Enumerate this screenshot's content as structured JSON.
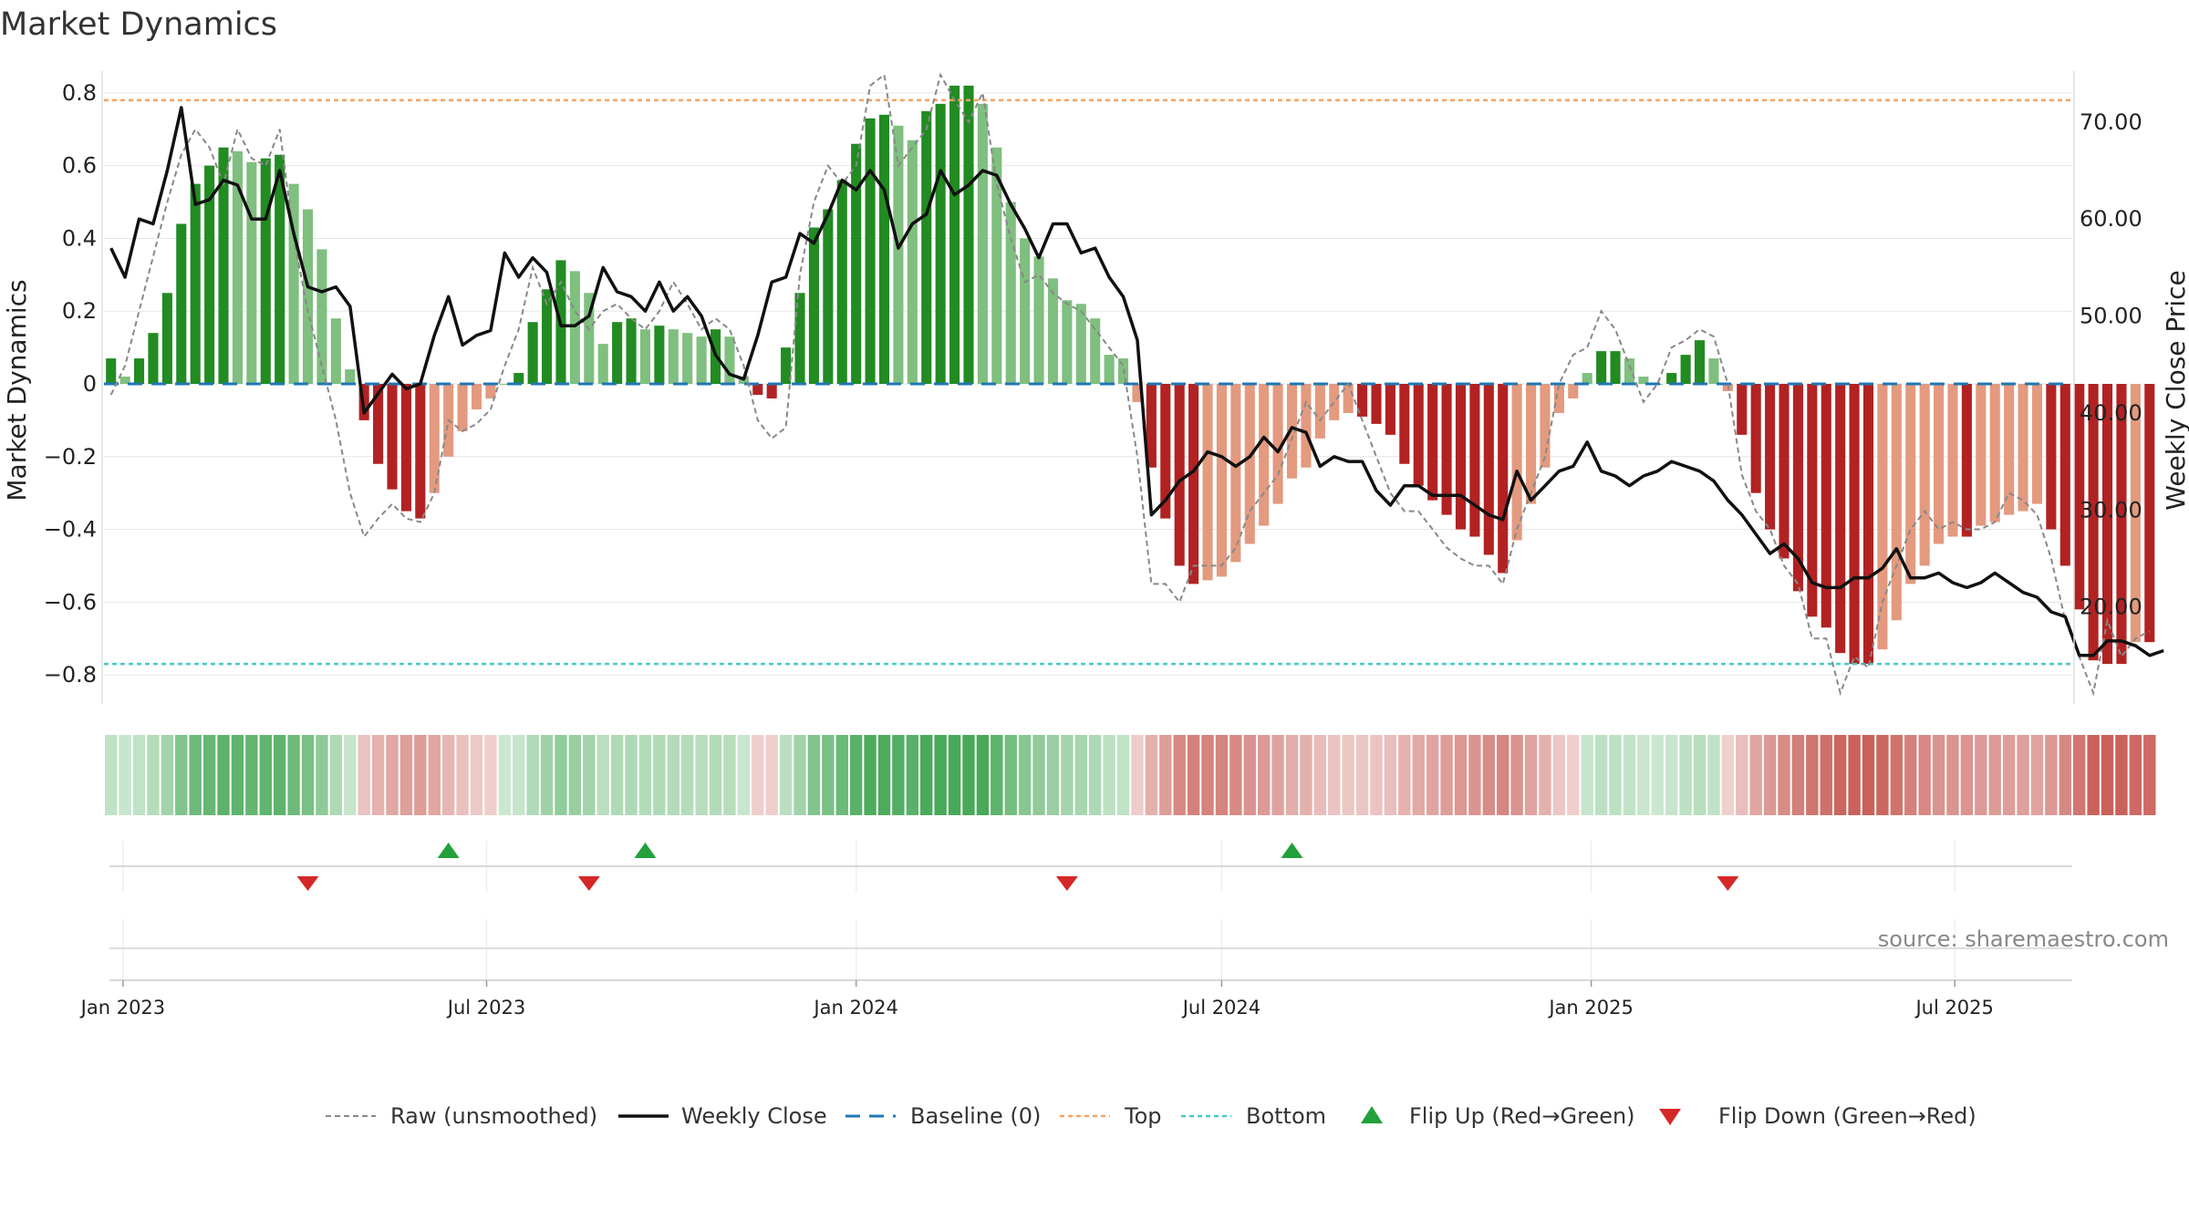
{
  "chart_data": {
    "type": "bar",
    "title": "Market Dynamics",
    "ylabel_left": "Market Dynamics",
    "ylabel_right": "Weekly Close Price",
    "ylim_left": [
      -0.88,
      0.88
    ],
    "ylim_right": [
      10,
      76
    ],
    "y_ticks_left": [
      0.8,
      0.6,
      0.4,
      0.2,
      0,
      -0.2,
      -0.4,
      -0.6,
      -0.8
    ],
    "y_tick_labels_left": [
      "0.8",
      "0.6",
      "0.4",
      "0.2",
      "0",
      "−0.2",
      "−0.4",
      "−0.6",
      "−0.8"
    ],
    "y_ticks_right": [
      70,
      60,
      50,
      40,
      30,
      20
    ],
    "y_tick_labels_right": [
      "70.00",
      "60.00",
      "50.00",
      "40.00",
      "30.00",
      "20.00"
    ],
    "start_date": "2022-12-26",
    "weeks": 140,
    "x_tick_labels": [
      "Jan 2023",
      "Jul 2023",
      "Jan 2024",
      "Jul 2024",
      "Jan 2025",
      "Jul 2025"
    ],
    "x_tick_dates": [
      "2023-01-01",
      "2023-07-01",
      "2024-01-01",
      "2024-07-01",
      "2025-01-01",
      "2025-07-01"
    ],
    "top_level": 0.78,
    "bottom_level": -0.77,
    "baseline_level": 0,
    "dynamics": [
      0.07,
      0.02,
      0.07,
      0.14,
      0.25,
      0.44,
      0.55,
      0.6,
      0.65,
      0.64,
      0.61,
      0.62,
      0.63,
      0.55,
      0.48,
      0.37,
      0.18,
      0.04,
      -0.1,
      -0.22,
      -0.29,
      -0.35,
      -0.37,
      -0.3,
      -0.2,
      -0.13,
      -0.07,
      -0.04,
      0.0,
      0.03,
      0.17,
      0.26,
      0.34,
      0.31,
      0.25,
      0.11,
      0.17,
      0.18,
      0.15,
      0.16,
      0.15,
      0.14,
      0.13,
      0.15,
      0.13,
      0.02,
      -0.03,
      -0.04,
      0.1,
      0.25,
      0.43,
      0.48,
      0.56,
      0.66,
      0.73,
      0.74,
      0.71,
      0.67,
      0.75,
      0.77,
      0.82,
      0.82,
      0.77,
      0.65,
      0.5,
      0.4,
      0.35,
      0.29,
      0.23,
      0.22,
      0.18,
      0.08,
      0.07,
      -0.05,
      -0.23,
      -0.37,
      -0.5,
      -0.55,
      -0.54,
      -0.53,
      -0.49,
      -0.44,
      -0.39,
      -0.33,
      -0.26,
      -0.23,
      -0.15,
      -0.1,
      -0.08,
      -0.09,
      -0.11,
      -0.14,
      -0.22,
      -0.28,
      -0.32,
      -0.36,
      -0.4,
      -0.42,
      -0.47,
      -0.52,
      -0.43,
      -0.33,
      -0.23,
      -0.08,
      -0.04,
      0.03,
      0.09,
      0.09,
      0.07,
      0.02,
      0.0,
      0.03,
      0.08,
      0.12,
      0.07,
      -0.02,
      -0.14,
      -0.3,
      -0.4,
      -0.48,
      -0.57,
      -0.64,
      -0.67,
      -0.74,
      -0.77,
      -0.77,
      -0.73,
      -0.65,
      -0.55,
      -0.5,
      -0.44,
      -0.42,
      -0.42,
      -0.39,
      -0.38,
      -0.36,
      -0.35,
      -0.33,
      -0.4,
      -0.5,
      -0.62,
      -0.76,
      -0.77,
      -0.77,
      -0.71,
      -0.71
    ],
    "raw_unsmoothed": [
      -0.03,
      0.05,
      0.2,
      0.35,
      0.5,
      0.63,
      0.7,
      0.65,
      0.55,
      0.7,
      0.62,
      0.6,
      0.7,
      0.4,
      0.2,
      0.05,
      -0.1,
      -0.3,
      -0.42,
      -0.37,
      -0.33,
      -0.37,
      -0.38,
      -0.3,
      -0.1,
      -0.13,
      -0.11,
      -0.07,
      0.05,
      0.15,
      0.32,
      0.22,
      0.28,
      0.2,
      0.15,
      0.2,
      0.22,
      0.18,
      0.15,
      0.2,
      0.28,
      0.22,
      0.15,
      0.18,
      0.15,
      0.05,
      -0.1,
      -0.15,
      -0.12,
      0.3,
      0.5,
      0.6,
      0.55,
      0.6,
      0.82,
      0.85,
      0.6,
      0.65,
      0.7,
      0.85,
      0.78,
      0.72,
      0.8,
      0.55,
      0.4,
      0.28,
      0.3,
      0.25,
      0.22,
      0.2,
      0.15,
      0.1,
      0.05,
      -0.2,
      -0.55,
      -0.55,
      -0.6,
      -0.5,
      -0.5,
      -0.5,
      -0.45,
      -0.35,
      -0.3,
      -0.25,
      -0.15,
      -0.05,
      -0.1,
      -0.05,
      0.0,
      -0.1,
      -0.2,
      -0.3,
      -0.35,
      -0.35,
      -0.4,
      -0.45,
      -0.48,
      -0.5,
      -0.5,
      -0.55,
      -0.4,
      -0.3,
      -0.2,
      0.0,
      0.08,
      0.1,
      0.2,
      0.15,
      0.05,
      -0.05,
      0.0,
      0.1,
      0.12,
      0.15,
      0.13,
      0.0,
      -0.25,
      -0.35,
      -0.4,
      -0.5,
      -0.55,
      -0.7,
      -0.7,
      -0.85,
      -0.75,
      -0.78,
      -0.6,
      -0.5,
      -0.4,
      -0.35,
      -0.4,
      -0.38,
      -0.4,
      -0.4,
      -0.38,
      -0.3,
      -0.32,
      -0.36,
      -0.48,
      -0.65,
      -0.75,
      -0.85,
      -0.65,
      -0.75,
      -0.7,
      -0.68
    ],
    "weekly_close": [
      57,
      54,
      60,
      59.5,
      65,
      71.5,
      61.5,
      62,
      64,
      63.5,
      60,
      60,
      65,
      58.5,
      53,
      52.5,
      53,
      51,
      40,
      42,
      44,
      42.5,
      43,
      48,
      52,
      47,
      48,
      48.5,
      56.5,
      54,
      56,
      54.5,
      49,
      49,
      50,
      55,
      52.5,
      52,
      50.5,
      53.5,
      50.5,
      52,
      50,
      46,
      44,
      43.5,
      48,
      53.5,
      54,
      58.5,
      57.5,
      60.5,
      64,
      63,
      65,
      63,
      57,
      59.5,
      60.5,
      65,
      62.5,
      63.5,
      65,
      64.5,
      61.5,
      59,
      56,
      59.5,
      59.5,
      56.5,
      57,
      54,
      52,
      47.5,
      29.5,
      31,
      33,
      34,
      36,
      35.5,
      34.5,
      35.5,
      37.5,
      36,
      38.5,
      38,
      34.5,
      35.5,
      35,
      35,
      32,
      30.5,
      32.5,
      32.5,
      31.5,
      31.5,
      31.5,
      30.5,
      29.5,
      29,
      34,
      31,
      32.5,
      34,
      34.5,
      37,
      34,
      33.5,
      32.5,
      33.5,
      34,
      35,
      34.5,
      34,
      33,
      31,
      29.5,
      27.5,
      25.5,
      26.5,
      25,
      22.5,
      22,
      22,
      23,
      23,
      24,
      26,
      23,
      23,
      23.5,
      22.5,
      22,
      22.5,
      23.5,
      22.5,
      21.5,
      21,
      19.5,
      19,
      15,
      15,
      16.5,
      16.5,
      16,
      15,
      15.5
    ],
    "flip_up_week": [
      24,
      38,
      84
    ],
    "flip_down_week": [
      14,
      34,
      68,
      115
    ],
    "legend_position": "bottom-center",
    "grid": "horizontal-light"
  },
  "legend": {
    "raw_label": "Raw (unsmoothed)",
    "close_label": "Weekly Close",
    "baseline_label": "Baseline (0)",
    "top_label": "Top",
    "bottom_label": "Bottom",
    "flip_up_label": "Flip Up (Red→Green)",
    "flip_down_label": "Flip Down (Green→Red)"
  },
  "source": "source: sharemaestro.com",
  "colors": {
    "pos_strong": "#228B22",
    "pos_light": "#7FBF7F",
    "neg_strong": "#B22222",
    "neg_light": "#E39A7F",
    "top_line": "#F4A460",
    "bottom_line": "#48C9C9",
    "baseline": "#1F77B4",
    "close_line": "#111111",
    "raw_line": "#888888",
    "flip_up": "#22A03C",
    "flip_down": "#D62728"
  }
}
